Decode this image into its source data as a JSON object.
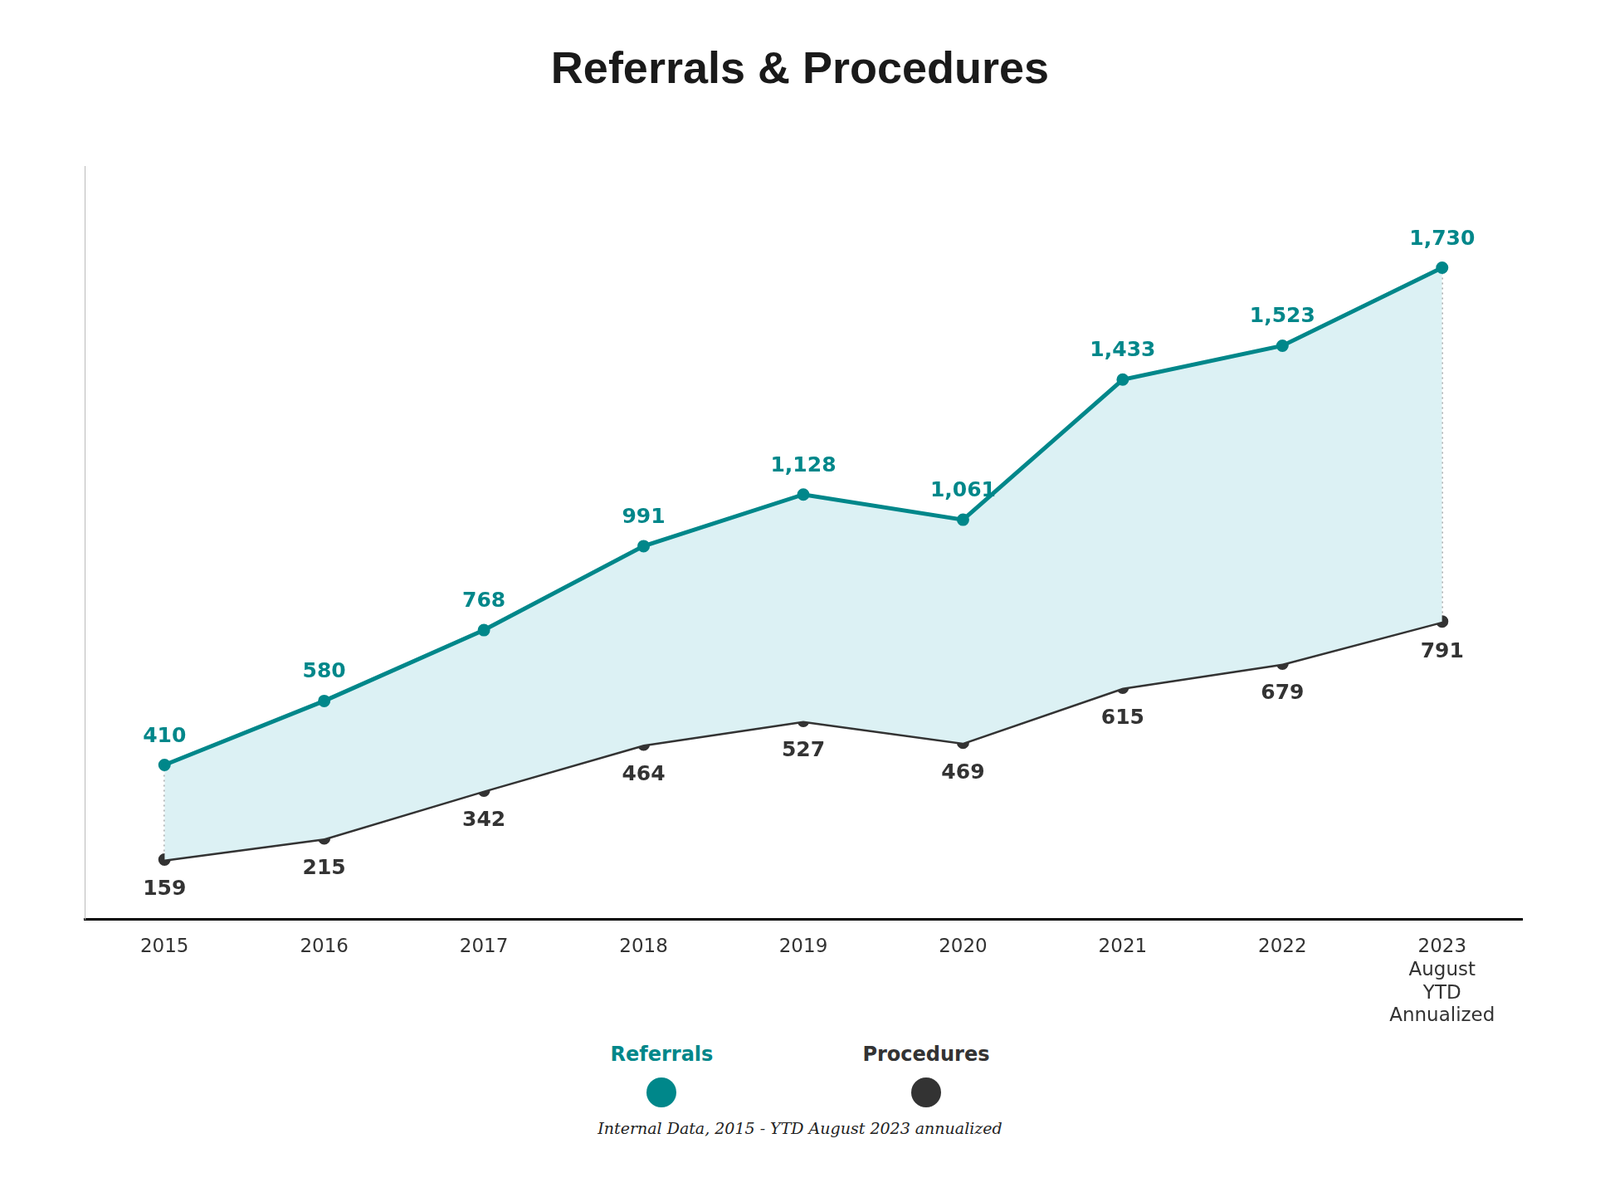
{
  "chart_data": {
    "type": "line",
    "title": "Referrals & Procedures",
    "categories": [
      "2015",
      "2016",
      "2017",
      "2018",
      "2019",
      "2020",
      "2021",
      "2022",
      [
        "2023",
        "August",
        "YTD",
        "Annualized"
      ]
    ],
    "series": [
      {
        "name": "Referrals",
        "color": "#00878a",
        "values": [
          410,
          580,
          768,
          991,
          1128,
          1061,
          1433,
          1523,
          1730
        ],
        "value_labels": [
          "410",
          "580",
          "768",
          "991",
          "1,128",
          "1,061",
          "1,433",
          "1,523",
          "1,730"
        ]
      },
      {
        "name": "Procedures",
        "color": "#333333",
        "values": [
          159,
          215,
          342,
          464,
          527,
          469,
          615,
          679,
          791
        ]
      }
    ],
    "ylim": [
      0,
      2000
    ],
    "tick_labels": "x",
    "grid": false,
    "data_labels": true,
    "legend": "bottom",
    "source": "Internal Data, 2015 - YTD August 2023 annualized"
  }
}
